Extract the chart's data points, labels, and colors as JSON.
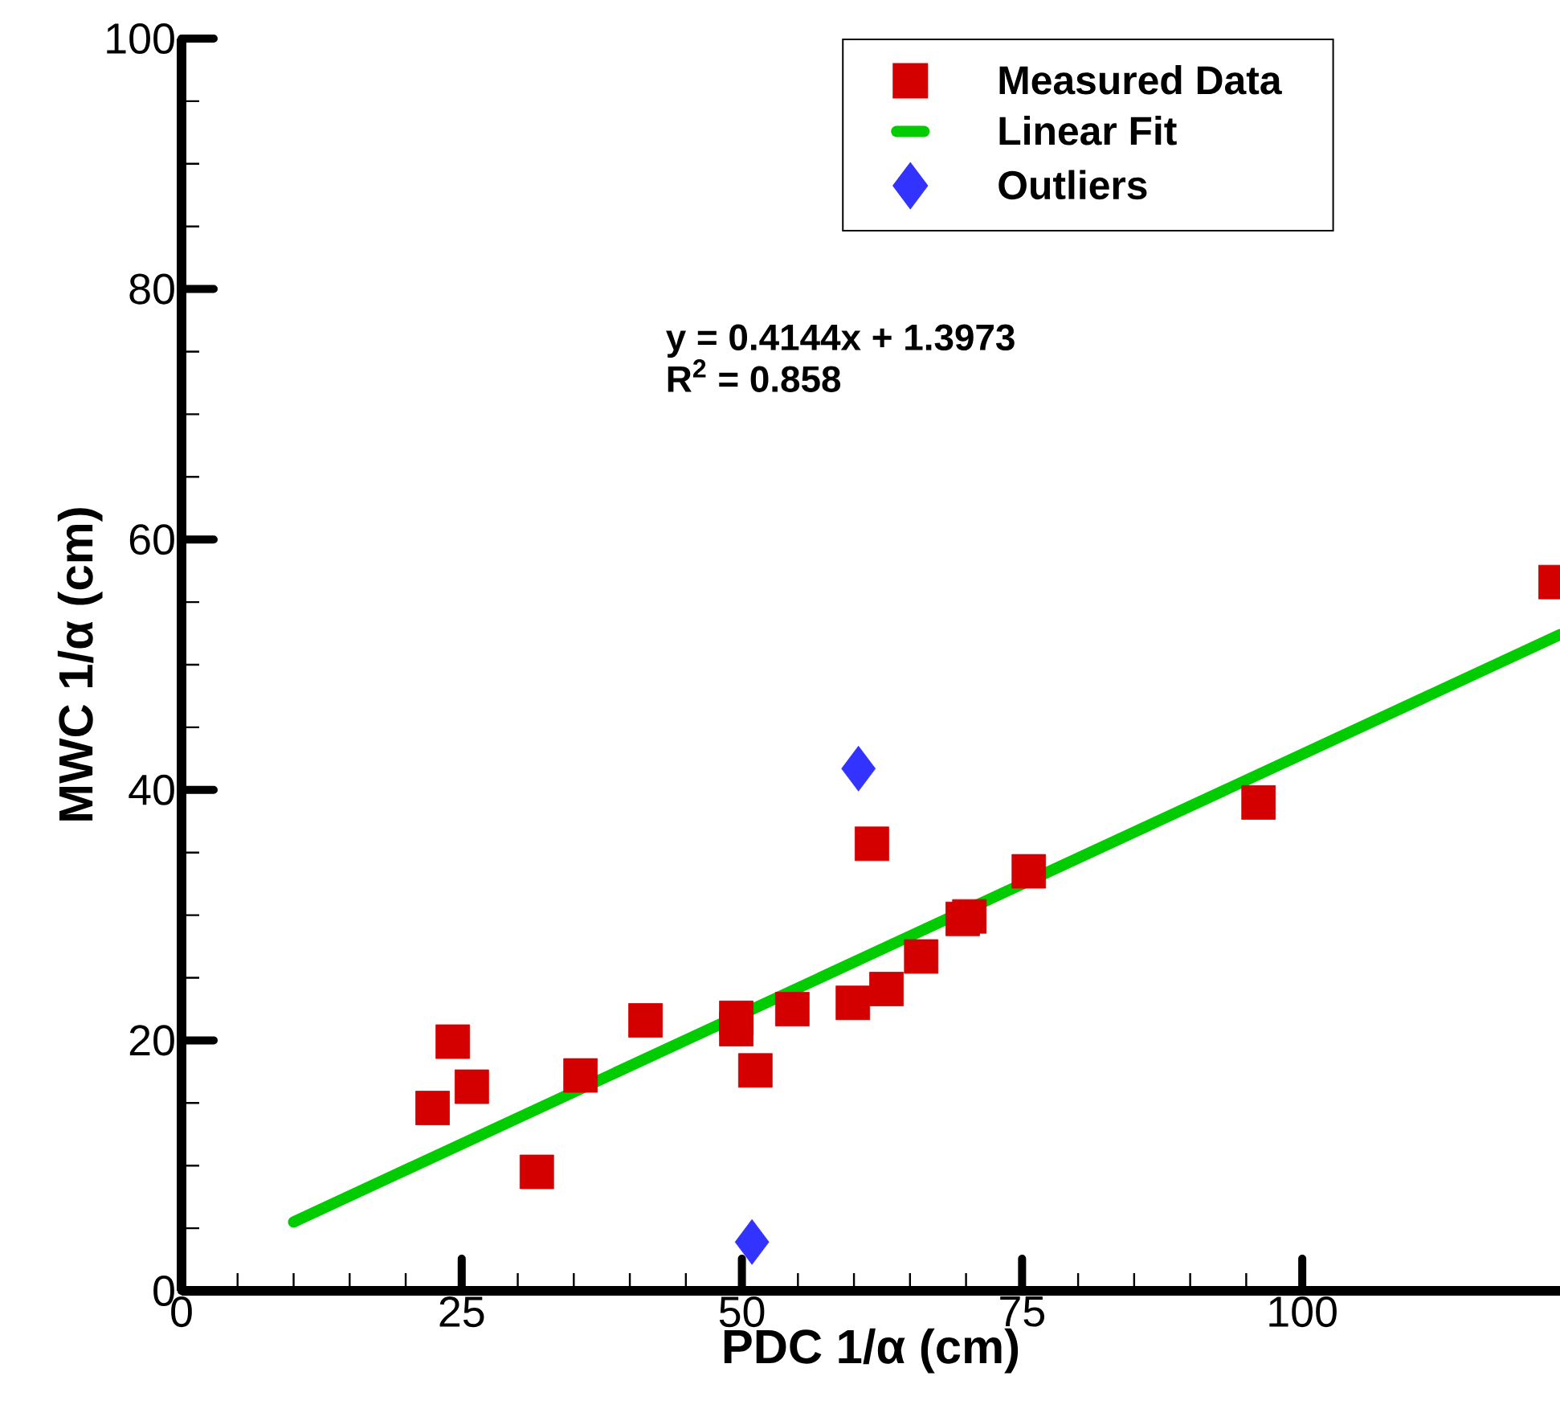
{
  "chart_data": {
    "type": "scatter",
    "xlabel": "PDC 1/α (cm)",
    "ylabel": "MWC 1/α (cm)",
    "xlim": [
      0,
      123
    ],
    "ylim": [
      0,
      100
    ],
    "xticks": [
      0,
      25,
      50,
      75,
      100
    ],
    "yticks": [
      0,
      20,
      40,
      60,
      80,
      100
    ],
    "grid": false,
    "legend": "top right",
    "annotations": [
      "y = 0.4144x + 1.3973",
      "R$^{2}$ = 0.858"
    ],
    "series": [
      {
        "name": "Measured Data",
        "marker": "square",
        "color": "#d40000",
        "x": [
          22.4,
          24.2,
          25.9,
          31.7,
          35.6,
          41.4,
          49.5,
          49.5,
          51.2,
          54.5,
          59.9,
          61.6,
          62.9,
          66.0,
          69.7,
          70.3,
          75.6,
          96.1,
          122.6
        ],
        "values": [
          14.6,
          19.9,
          16.3,
          9.5,
          17.2,
          21.6,
          21.8,
          20.9,
          17.6,
          22.5,
          23.0,
          35.7,
          24.1,
          26.7,
          29.7,
          29.9,
          33.5,
          39.0,
          56.6
        ]
      },
      {
        "name": "Linear Fit",
        "type": "line",
        "marker": "none",
        "color": "#00cc00",
        "x": [
          10,
          123
        ],
        "values": [
          5.5,
          52.4
        ]
      },
      {
        "name": "Outliers",
        "marker": "diamond",
        "color": "#3333ff",
        "x": [
          60.4,
          50.9
        ],
        "values": [
          41.7,
          3.9
        ]
      }
    ]
  }
}
